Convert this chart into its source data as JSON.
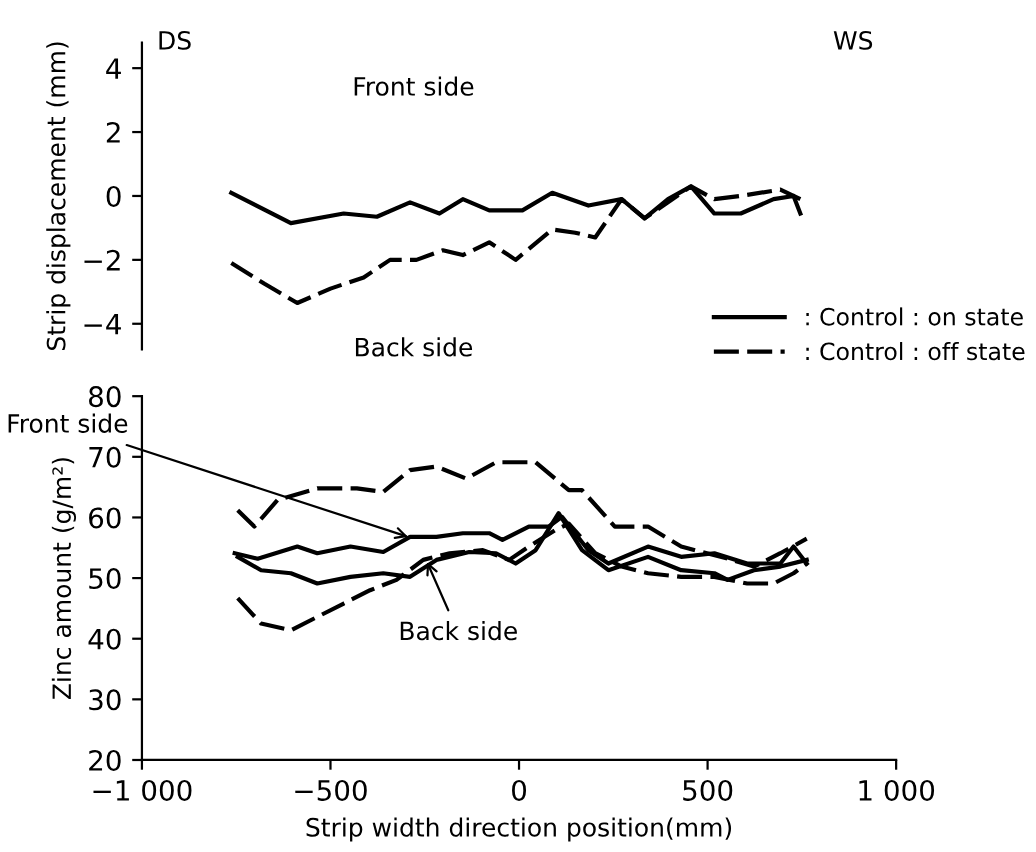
{
  "chart_data": [
    {
      "type": "line",
      "ylabel": "Strip displacement (mm)",
      "xlim": [
        -1000,
        1000
      ],
      "ylim": [
        -4.8,
        4.8
      ],
      "yticks": [
        {
          "value": 4,
          "label": "4"
        },
        {
          "value": 2,
          "label": "2"
        },
        {
          "value": 0,
          "label": "0"
        },
        {
          "value": -2,
          "label": "−2"
        },
        {
          "value": -4,
          "label": "−4"
        }
      ],
      "tick_labels": "y",
      "grid": false,
      "legend": "bottom right",
      "annotations": [
        "DS",
        "WS",
        "Front side",
        "Back side"
      ],
      "series": [
        {
          "name": ": Control : on state",
          "color": "#000000",
          "line_style": "solid",
          "x": [
            -763,
            -605,
            -465,
            -377,
            -289,
            -211,
            -149,
            -79,
            9,
            88,
            184,
            272,
            333,
            395,
            456,
            518,
            588,
            675,
            728,
            746
          ],
          "values": [
            0.1,
            -0.85,
            -0.55,
            -0.65,
            -0.2,
            -0.55,
            -0.1,
            -0.45,
            -0.45,
            0.1,
            -0.3,
            -0.1,
            -0.7,
            -0.1,
            0.3,
            -0.55,
            -0.55,
            -0.1,
            0,
            -0.55
          ]
        },
        {
          "name": ": Control : off state",
          "color": "#000000",
          "line_style": "dashed",
          "x": [
            -763,
            -675,
            -588,
            -500,
            -412,
            -342,
            -272,
            -202,
            -149,
            -79,
            -9,
            88,
            149,
            202,
            272,
            333,
            456,
            518,
            588,
            693,
            746
          ],
          "values": [
            -2.1,
            -2.75,
            -3.35,
            -2.9,
            -2.55,
            -2.0,
            -2.0,
            -1.7,
            -1.85,
            -1.45,
            -2.0,
            -1.05,
            -1.15,
            -1.3,
            -0.1,
            -0.7,
            0.3,
            -0.1,
            0,
            0.2,
            -0.1
          ]
        }
      ]
    },
    {
      "type": "line",
      "xlabel": "Strip width direction position(mm)",
      "ylabel": "Zinc amount (g/m²)",
      "xlim": [
        -1000,
        1000
      ],
      "ylim": [
        20,
        80
      ],
      "xticks": [
        {
          "value": -1000,
          "label": "−1 000"
        },
        {
          "value": -500,
          "label": "−500"
        },
        0,
        500,
        {
          "value": 1000,
          "label": "1 000"
        }
      ],
      "yticks": [
        20,
        30,
        40,
        50,
        60,
        70,
        80
      ],
      "grid": false,
      "legend": false,
      "annotations": [
        {
          "text": "Front side",
          "x": -280,
          "y": 56.5
        },
        {
          "text": "Back side",
          "x": -250,
          "y": 53.5
        }
      ],
      "series": [
        {
          "color": "#000000",
          "line_style": "dashed",
          "x": [
            -746,
            -702,
            -640,
            -535,
            -430,
            -360,
            -289,
            -219,
            -140,
            -61,
            44,
            132,
            167,
            254,
            342,
            430,
            553,
            623,
            693,
            763
          ],
          "values": [
            61.2,
            58.5,
            62.9,
            64.8,
            64.8,
            64.2,
            67.8,
            68.4,
            66.4,
            69.1,
            69.1,
            64.5,
            64.5,
            58.5,
            58.5,
            55.2,
            53.2,
            51.9,
            54.1,
            56.5
          ]
        },
        {
          "color": "#000000",
          "line_style": "dashed",
          "x": [
            -746,
            -684,
            -605,
            -535,
            -465,
            -395,
            -325,
            -254,
            -184,
            -96,
            -26,
            26,
            96,
            132,
            202,
            272,
            342,
            430,
            518,
            605,
            675,
            728,
            763
          ],
          "values": [
            46.7,
            42.5,
            41.4,
            43.6,
            45.8,
            48.0,
            49.7,
            53.0,
            54.1,
            54.6,
            53.0,
            55.2,
            57.9,
            59.0,
            54.1,
            51.9,
            50.8,
            50.2,
            50.2,
            49.1,
            49.1,
            50.8,
            52.4
          ]
        },
        {
          "color": "#000000",
          "line_style": "solid",
          "x": [
            -754,
            -693,
            -588,
            -535,
            -447,
            -360,
            -289,
            -219,
            -149,
            -79,
            -44,
            26,
            79,
            114,
            184,
            237,
            342,
            430,
            518,
            605,
            693,
            728,
            763
          ],
          "values": [
            54.1,
            53.2,
            55.2,
            54.1,
            55.2,
            54.3,
            56.8,
            56.8,
            57.4,
            57.4,
            56.3,
            58.5,
            58.5,
            60.1,
            54.6,
            52.4,
            55.2,
            53.5,
            54.1,
            52.4,
            52.4,
            55.2,
            52.4
          ]
        },
        {
          "color": "#000000",
          "line_style": "solid",
          "x": [
            -746,
            -684,
            -605,
            -535,
            -447,
            -360,
            -289,
            -219,
            -132,
            -61,
            -9,
            44,
            105,
            167,
            237,
            342,
            430,
            518,
            553,
            623,
            693,
            763
          ],
          "values": [
            53.5,
            51.3,
            50.8,
            49.1,
            50.2,
            50.8,
            50.2,
            53.0,
            54.3,
            54.1,
            52.4,
            54.6,
            60.7,
            54.6,
            51.3,
            53.5,
            51.3,
            50.8,
            49.7,
            51.3,
            51.9,
            53.0
          ]
        }
      ]
    }
  ]
}
